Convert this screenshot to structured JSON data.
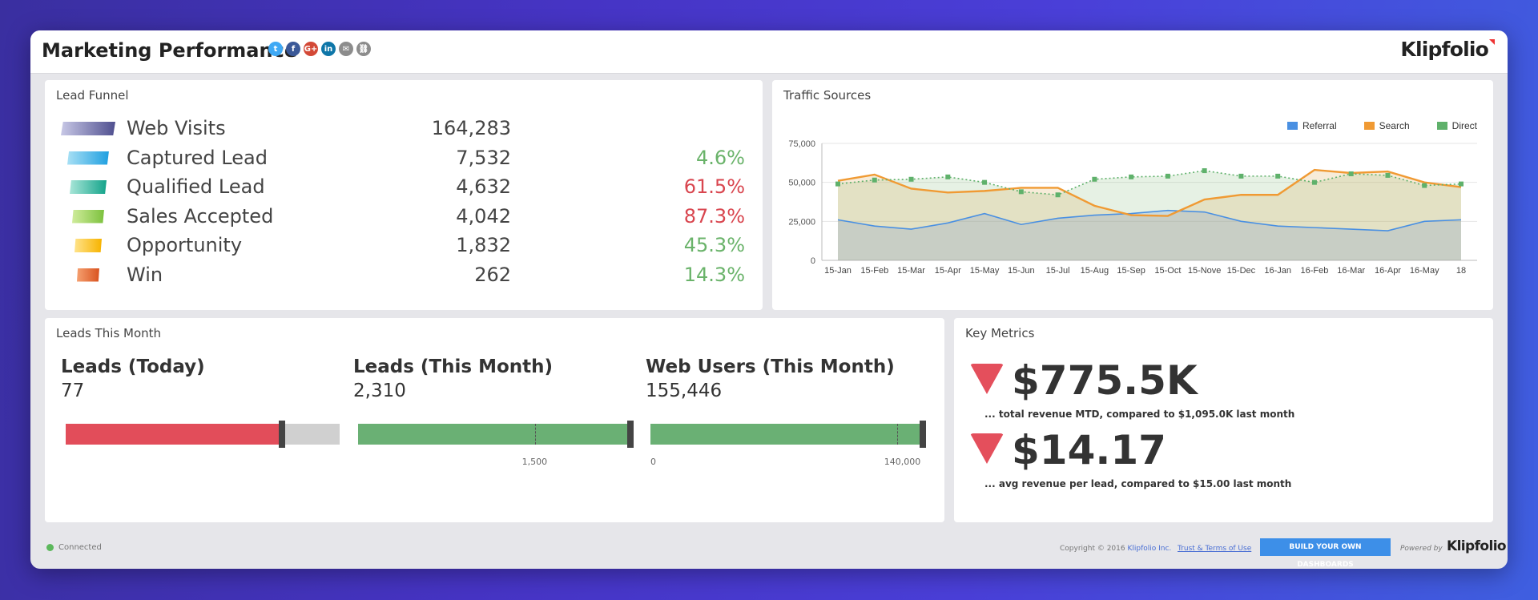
{
  "header": {
    "title": "Marketing Performance",
    "share_icons": [
      {
        "name": "twitter-icon",
        "glyph": "t",
        "color": "#3fa9f5"
      },
      {
        "name": "facebook-icon",
        "glyph": "f",
        "color": "#3b5998"
      },
      {
        "name": "google-plus-icon",
        "glyph": "G+",
        "color": "#d34836"
      },
      {
        "name": "linkedin-icon",
        "glyph": "in",
        "color": "#0e76a8"
      },
      {
        "name": "email-icon",
        "glyph": "✉",
        "color": "#8c8c8c"
      },
      {
        "name": "link-icon",
        "glyph": "⛓",
        "color": "#8c8c8c"
      }
    ],
    "logo": "Klipfolio"
  },
  "lead_funnel": {
    "title": "Lead Funnel",
    "rows": [
      {
        "label": "Web Visits",
        "value": "164,283",
        "pct": "",
        "pct_color": "#6ab36a",
        "colors": [
          "#c8c8e6",
          "#4f4f8f"
        ]
      },
      {
        "label": "Captured Lead",
        "value": "7,532",
        "pct": "4.6%",
        "pct_color": "#6ab36a",
        "colors": [
          "#a8e0f5",
          "#1f9fe0"
        ]
      },
      {
        "label": "Qualified Lead",
        "value": "4,632",
        "pct": "61.5%",
        "pct_color": "#d9464f",
        "colors": [
          "#a8e6d8",
          "#14a38a"
        ]
      },
      {
        "label": "Sales Accepted",
        "value": "4,042",
        "pct": "87.3%",
        "pct_color": "#d9464f",
        "colors": [
          "#d0ec9c",
          "#7cc13d"
        ]
      },
      {
        "label": "Opportunity",
        "value": "1,832",
        "pct": "45.3%",
        "pct_color": "#6ab36a",
        "colors": [
          "#ffe38a",
          "#f7b300"
        ]
      },
      {
        "label": "Win",
        "value": "262",
        "pct": "14.3%",
        "pct_color": "#6ab36a",
        "colors": [
          "#f5a070",
          "#d9531f"
        ]
      }
    ]
  },
  "traffic_sources": {
    "title": "Traffic Sources",
    "legend": [
      {
        "name": "Referral",
        "color": "#4a90e2"
      },
      {
        "name": "Search",
        "color": "#f09a33"
      },
      {
        "name": "Direct",
        "color": "#5fb16b"
      }
    ]
  },
  "chart_data": {
    "type": "area",
    "categories": [
      "15-Jan",
      "15-Feb",
      "15-Mar",
      "15-Apr",
      "15-May",
      "15-Jun",
      "15-Jul",
      "15-Aug",
      "15-Sep",
      "15-Oct",
      "15-Nove",
      "15-Dec",
      "16-Jan",
      "16-Feb",
      "16-Mar",
      "16-Apr",
      "16-May",
      "18"
    ],
    "series": [
      {
        "name": "Referral",
        "values": [
          26000,
          22000,
          20000,
          24000,
          30000,
          23000,
          27000,
          29000,
          30000,
          32000,
          31000,
          25000,
          22000,
          21000,
          20000,
          19000,
          25000,
          26000
        ]
      },
      {
        "name": "Search",
        "values": [
          51000,
          55000,
          46000,
          43500,
          44500,
          46500,
          46500,
          35000,
          29000,
          28500,
          39000,
          42000,
          42000,
          58000,
          56000,
          57000,
          50000,
          47000
        ]
      },
      {
        "name": "Direct",
        "values": [
          49000,
          51500,
          52000,
          53500,
          50000,
          44000,
          42000,
          52000,
          53500,
          54000,
          57500,
          54000,
          54000,
          50000,
          55500,
          54500,
          48000,
          49000
        ]
      }
    ],
    "ylim": [
      0,
      75000
    ],
    "yticks": [
      "0",
      "25,000",
      "50,000",
      "75,000"
    ],
    "grid": true,
    "legend": "top-right"
  },
  "leads_this_month": {
    "title": "Leads This Month",
    "kpis": [
      {
        "title": "Leads (Today)",
        "value": "77",
        "fill_fraction": 0.79,
        "marker_fraction": 0.79,
        "target_fraction": null,
        "fill_color": "#e24d5a",
        "ticks": []
      },
      {
        "title": "Leads (This Month)",
        "value": "2,310",
        "fill_fraction": 1.0,
        "marker_fraction": 0.995,
        "target_fraction": 0.645,
        "fill_color": "#6ab074",
        "ticks": [
          "1,500"
        ]
      },
      {
        "title": "Web Users (This Month)",
        "value": "155,446",
        "fill_fraction": 1.0,
        "marker_fraction": 0.995,
        "target_fraction": 0.9,
        "fill_color": "#6ab074",
        "ticks": [
          "0",
          "140,000"
        ]
      }
    ]
  },
  "key_metrics": {
    "title": "Key Metrics",
    "metrics": [
      {
        "value": "$775.5K",
        "caption": "... total revenue MTD, compared to $1,095.0K last month",
        "trend": "down"
      },
      {
        "value": "$14.17",
        "caption": "... avg revenue per lead, compared to $15.00 last month",
        "trend": "down"
      }
    ]
  },
  "footer": {
    "status": "Connected",
    "copyright_prefix": "Copyright © 2016 ",
    "copyright_link": "Klipfolio Inc.",
    "terms": "Trust & Terms of Use",
    "build_button": "BUILD YOUR OWN DASHBOARDS",
    "powered_by": "Powered by",
    "logo": "Klipfolio"
  }
}
